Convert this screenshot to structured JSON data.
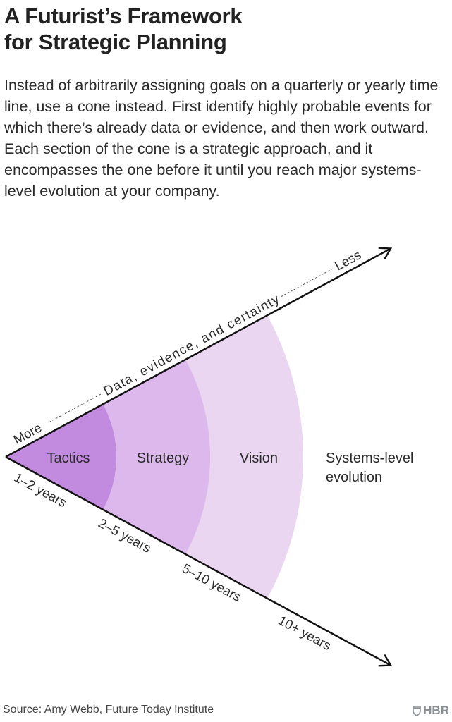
{
  "title": [
    "A Futurist’s Framework",
    "for Strategic Planning"
  ],
  "description": "Instead of arbitrarily assigning goals on a quarterly or yearly time line, use a cone instead. First identify highly probable events for which there’s already data or evidence, and then work outward. Each section of the cone is a strategic approach, and it encompasses the one before it until you reach major systems-level evolution at your company.",
  "diagram": {
    "upper_axis": {
      "start": "More",
      "label": "Data, evidence, and certainty",
      "end": "Less"
    },
    "sections": [
      {
        "label": "Tactics",
        "timeframe": "1–2 years",
        "color": "#c38bdf"
      },
      {
        "label": "Strategy",
        "timeframe": "2–5 years",
        "color": "#dcb8ec"
      },
      {
        "label": "Vision",
        "timeframe": "5–10 years",
        "color": "#ebd6f2"
      },
      {
        "label_lines": [
          "Systems-level",
          "evolution"
        ],
        "timeframe": "10+ years",
        "color": "#ffffff"
      }
    ]
  },
  "footer": {
    "source": "Source: Amy Webb, Future Today Institute",
    "logo": "HBR"
  }
}
